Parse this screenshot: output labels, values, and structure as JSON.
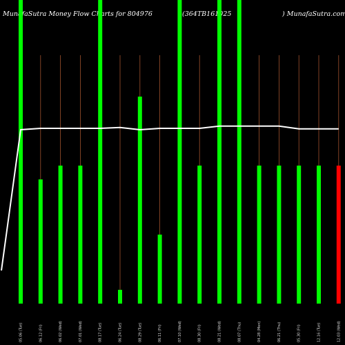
{
  "chart_data": {
    "type": "bar",
    "header": {
      "left": "MunafaSutra  Money Flow  Charts for 804976",
      "center": "(364TB161025",
      "right": ") MunafaSutra.com"
    },
    "categories": [
      "05.06 (Tue)",
      "06.12 (Fri)",
      "06.02 (Wed)",
      "07.01 (Wed)",
      "08.17 (Tue)",
      "06.24 (Tue)",
      "08.29 (Tue)",
      "06.11 (Fri)",
      "07.10 (Wed)",
      "08.30 (Fri)",
      "08.21 (Wed)",
      "08.07 (Thu)",
      "04.28 (Mon)",
      "06.21 (Thu)",
      "05.30 (Fri)",
      "12.16 (Tue)",
      "12.03 (Wed)"
    ],
    "values": [
      100,
      45,
      50,
      50,
      100,
      5,
      75,
      25,
      100,
      50,
      100,
      100,
      50,
      50,
      50,
      50,
      50
    ],
    "colors": [
      "#00ff00",
      "#00ff00",
      "#00ff00",
      "#00ff00",
      "#00ff00",
      "#00ff00",
      "#00ff00",
      "#00ff00",
      "#00ff00",
      "#00ff00",
      "#00ff00",
      "#00ff00",
      "#00ff00",
      "#00ff00",
      "#00ff00",
      "#00ff00",
      "#ff0000"
    ],
    "line": [
      12,
      63,
      63.5,
      63.5,
      63.5,
      63.5,
      63.8,
      63,
      63.5,
      63.5,
      63.5,
      64.3,
      64.3,
      64.3,
      64.3,
      63.3,
      63.3
    ],
    "ylim": [
      0,
      100
    ],
    "bar_color": "#00ff00",
    "down_color": "#ff0000",
    "line_color": "#ffffff",
    "grid_color": "#a0522d",
    "background": "#000000"
  }
}
